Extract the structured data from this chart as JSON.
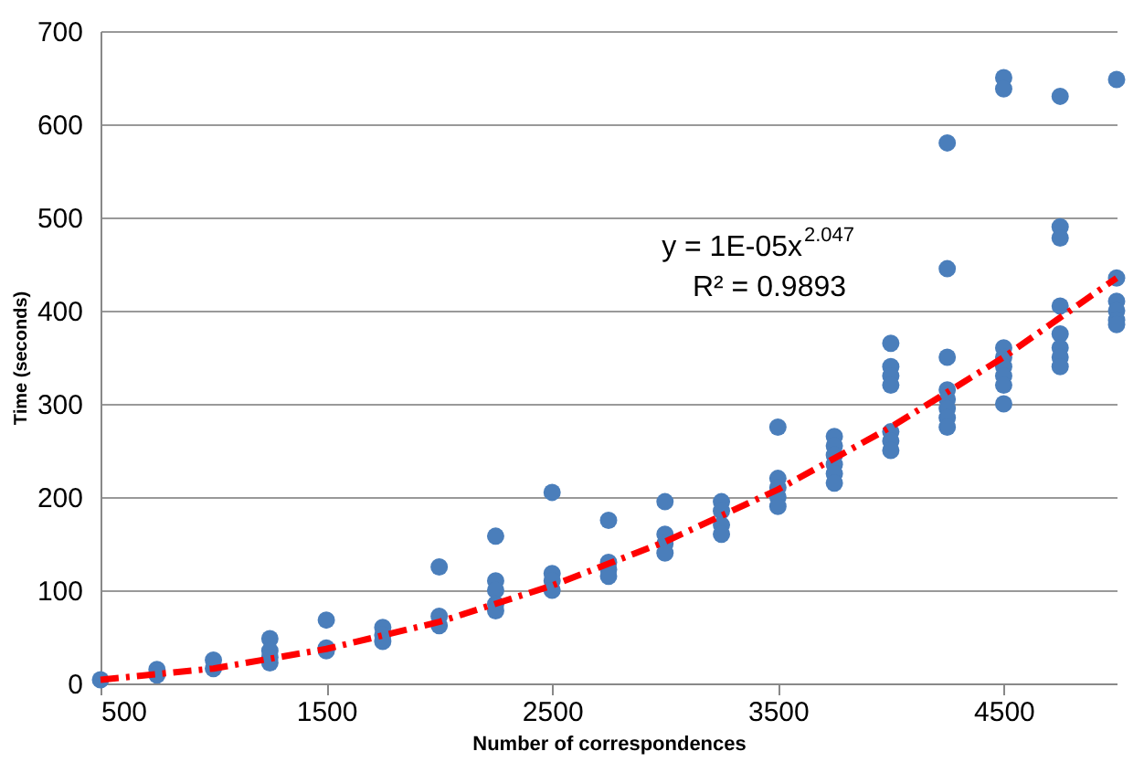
{
  "chart_data": {
    "type": "scatter",
    "xlabel": "Number of correspondences",
    "ylabel": "Time (seconds)",
    "xlim": [
      500,
      5000
    ],
    "xticks": [
      500,
      1500,
      2500,
      3500,
      4500
    ],
    "ylim": [
      0,
      700
    ],
    "yticks": [
      0,
      100,
      200,
      300,
      400,
      500,
      600,
      700
    ],
    "grid": "y",
    "marker": "circle",
    "annotations": [
      "y = 1E-05x$^{2.047}$",
      "R² = 0.9893"
    ],
    "series": [
      {
        "color": "#4a7ebb",
        "x": [
          500,
          750,
          750,
          1000,
          1000,
          1250,
          1250,
          1250,
          1250,
          1500,
          1500,
          1500,
          1750,
          1750,
          1750,
          2000,
          2000,
          2000,
          2250,
          2250,
          2250,
          2250,
          2250,
          2500,
          2500,
          2500,
          2500,
          2750,
          2750,
          2750,
          2750,
          3000,
          3000,
          3000,
          3000,
          3250,
          3250,
          3250,
          3250,
          3500,
          3500,
          3500,
          3500,
          3500,
          3750,
          3750,
          3750,
          3750,
          3750,
          3750,
          4000,
          4000,
          4000,
          4000,
          4000,
          4000,
          4000,
          4250,
          4250,
          4250,
          4250,
          4250,
          4250,
          4250,
          4250,
          4500,
          4500,
          4500,
          4500,
          4500,
          4500,
          4500,
          4500,
          4750,
          4750,
          4750,
          4750,
          4750,
          4750,
          4750,
          4750,
          5000,
          5000,
          5000,
          5000,
          5000,
          5000
        ],
        "values": [
          4,
          15,
          9,
          25,
          16,
          48,
          35,
          28,
          22,
          68,
          38,
          35,
          60,
          52,
          45,
          125,
          72,
          62,
          158,
          110,
          100,
          85,
          78,
          205,
          118,
          110,
          100,
          175,
          130,
          122,
          115,
          195,
          160,
          150,
          140,
          195,
          185,
          170,
          160,
          275,
          220,
          210,
          200,
          190,
          265,
          255,
          245,
          235,
          225,
          215,
          365,
          340,
          330,
          320,
          270,
          260,
          250,
          580,
          445,
          350,
          315,
          305,
          295,
          285,
          275,
          650,
          638,
          360,
          350,
          340,
          330,
          320,
          300,
          630,
          490,
          478,
          405,
          375,
          360,
          350,
          340,
          648,
          435,
          410,
          400,
          390,
          385
        ]
      },
      {
        "type": "line",
        "color": "#ff0000",
        "line_style": "dashed",
        "marker": "none",
        "x": [
          500,
          1000,
          1500,
          2000,
          2500,
          3000,
          3500,
          4000,
          4500,
          5000
        ],
        "values": [
          4,
          16,
          37,
          66,
          105,
          152,
          208,
          275,
          350,
          435
        ]
      }
    ]
  }
}
